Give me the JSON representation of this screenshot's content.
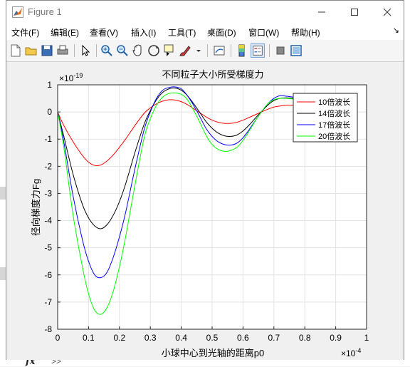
{
  "window": {
    "title": "Figure 1"
  },
  "menu": [
    "文件(F)",
    "编辑(E)",
    "查看(V)",
    "插入(I)",
    "工具(T)",
    "桌面(D)",
    "窗口(W)",
    "帮助(H)"
  ],
  "command_window": {
    "fx_label": "fx",
    "prompt": ">>"
  },
  "toolbar": {
    "icons": [
      "new-figure-icon",
      "open-file-icon",
      "save-icon",
      "print-icon",
      "select-arrow-icon",
      "zoom-in-icon",
      "zoom-out-icon",
      "pan-hand-icon",
      "rotate-3d-icon",
      "data-cursor-icon",
      "brush-icon",
      "link-plot-icon",
      "colorbar-icon",
      "legend-icon",
      "hide-plot-tools-icon",
      "show-plot-tools-icon"
    ]
  },
  "colors": {
    "red": "#ff0000",
    "black": "#000000",
    "blue": "#0000ff",
    "green": "#00ff00"
  },
  "chart_data": {
    "type": "line",
    "title": "不同粒子大小所受梯度力",
    "xlabel": "小球中心到光轴的距离p0",
    "ylabel": "径向梯度力Fg",
    "x_exponent": "×10",
    "x_exponent_power": "-4",
    "y_exponent": "×10",
    "y_exponent_power": "-19",
    "xlim": [
      0,
      1
    ],
    "ylim": [
      -8,
      1
    ],
    "xticks": [
      "0",
      "0.1",
      "0.2",
      "0.3",
      "0.4",
      "0.5",
      "0.6",
      "0.7",
      "0.8",
      "0.9",
      "1"
    ],
    "yticks": [
      "1",
      "0",
      "-1",
      "-2",
      "-3",
      "-4",
      "-5",
      "-6",
      "-7",
      "-8"
    ],
    "grid": true,
    "legend_position": "top-right",
    "x": [
      0,
      0.02,
      0.05,
      0.08,
      0.1,
      0.12,
      0.14,
      0.16,
      0.18,
      0.2,
      0.22,
      0.25,
      0.28,
      0.3,
      0.32,
      0.34,
      0.36,
      0.38,
      0.4,
      0.42,
      0.45,
      0.48,
      0.5,
      0.52,
      0.54,
      0.56,
      0.58,
      0.6,
      0.62,
      0.65,
      0.68,
      0.7,
      0.72,
      0.74,
      0.76,
      0.78
    ],
    "series": [
      {
        "name": "10倍波长",
        "color": "#ff0000",
        "values": [
          0,
          -0.5,
          -1.1,
          -1.6,
          -1.85,
          -1.97,
          -1.95,
          -1.8,
          -1.58,
          -1.3,
          -1.0,
          -0.5,
          -0.05,
          0.15,
          0.3,
          0.4,
          0.45,
          0.44,
          0.38,
          0.27,
          0.05,
          -0.18,
          -0.3,
          -0.38,
          -0.42,
          -0.42,
          -0.38,
          -0.3,
          -0.2,
          -0.05,
          0.1,
          0.18,
          0.22,
          0.25,
          0.25,
          0.24
        ]
      },
      {
        "name": "14倍波长",
        "color": "#000000",
        "values": [
          0,
          -0.9,
          -2.3,
          -3.4,
          -3.9,
          -4.2,
          -4.3,
          -4.15,
          -3.8,
          -3.3,
          -2.65,
          -1.5,
          -0.45,
          0.05,
          0.45,
          0.72,
          0.85,
          0.88,
          0.8,
          0.6,
          0.15,
          -0.35,
          -0.6,
          -0.78,
          -0.88,
          -0.9,
          -0.85,
          -0.7,
          -0.48,
          -0.1,
          0.25,
          0.42,
          0.5,
          0.52,
          0.5,
          0.46
        ]
      },
      {
        "name": "17倍波长",
        "color": "#0000ff",
        "values": [
          0,
          -1.1,
          -3.1,
          -4.7,
          -5.5,
          -6.0,
          -6.1,
          -5.9,
          -5.35,
          -4.6,
          -3.7,
          -2.1,
          -0.65,
          0.0,
          0.5,
          0.8,
          0.9,
          0.92,
          0.85,
          0.6,
          0.05,
          -0.6,
          -0.9,
          -1.1,
          -1.2,
          -1.22,
          -1.15,
          -0.95,
          -0.65,
          -0.15,
          0.3,
          0.5,
          0.6,
          0.58,
          0.55,
          0.5
        ]
      },
      {
        "name": "20倍波长",
        "color": "#00ff00",
        "values": [
          0,
          -1.3,
          -3.8,
          -5.7,
          -6.7,
          -7.3,
          -7.45,
          -7.2,
          -6.6,
          -5.7,
          -4.6,
          -2.7,
          -0.95,
          -0.25,
          0.25,
          0.55,
          0.68,
          0.7,
          0.65,
          0.45,
          -0.15,
          -0.85,
          -1.2,
          -1.38,
          -1.45,
          -1.42,
          -1.3,
          -1.05,
          -0.7,
          -0.15,
          0.3,
          0.45,
          0.5,
          0.5,
          0.48,
          0.44
        ]
      }
    ]
  }
}
